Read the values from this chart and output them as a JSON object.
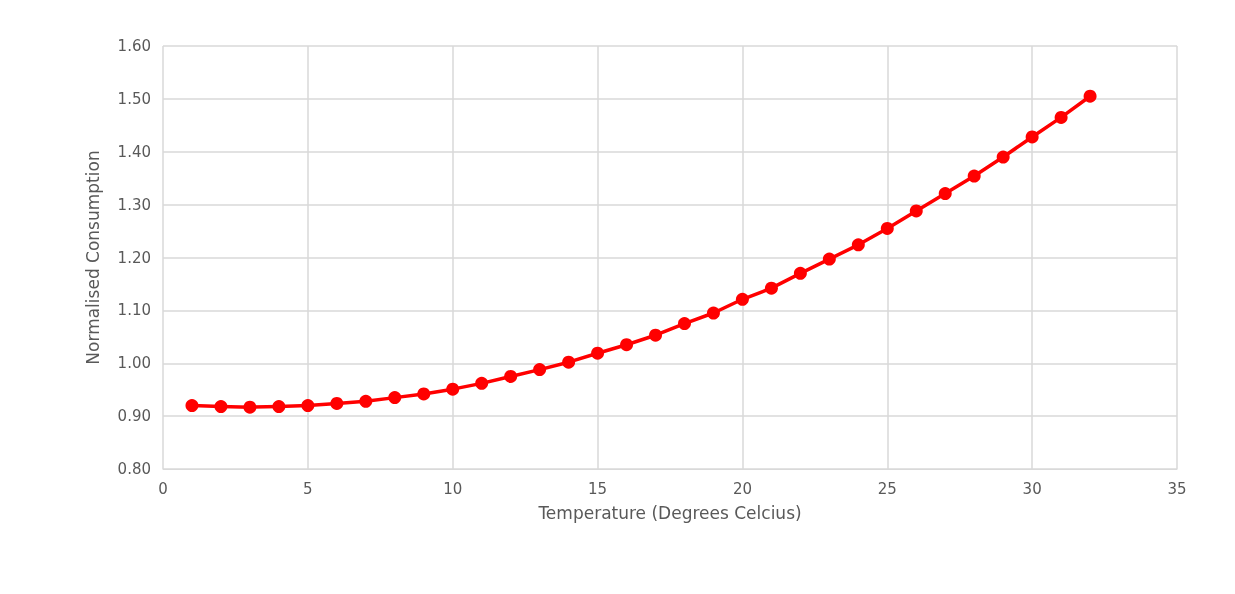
{
  "chart_data": {
    "type": "line",
    "xlabel": "Temperature (Degrees Celcius)",
    "ylabel": "Normalised Consumption",
    "x": [
      1,
      2,
      3,
      4,
      5,
      6,
      7,
      8,
      9,
      10,
      11,
      12,
      13,
      14,
      15,
      16,
      17,
      18,
      19,
      20,
      21,
      22,
      23,
      24,
      25,
      26,
      27,
      28,
      29,
      30,
      31,
      32
    ],
    "series": [
      {
        "color": "#ff0000",
        "values": [
          0.92,
          0.918,
          0.917,
          0.918,
          0.92,
          0.924,
          0.928,
          0.935,
          0.942,
          0.951,
          0.962,
          0.975,
          0.988,
          1.002,
          1.019,
          1.035,
          1.053,
          1.075,
          1.095,
          1.121,
          1.142,
          1.17,
          1.197,
          1.224,
          1.255,
          1.288,
          1.321,
          1.354,
          1.39,
          1.428,
          1.465,
          1.505
        ]
      }
    ],
    "xlim": [
      0,
      35
    ],
    "xticks": [
      0,
      5,
      10,
      15,
      20,
      25,
      30,
      35
    ],
    "ylim": [
      0.8,
      1.6
    ],
    "yticks": [
      {
        "value": 0.8,
        "label": "0.80"
      },
      {
        "value": 0.9,
        "label": "0.90"
      },
      {
        "value": 1.0,
        "label": "1.00"
      },
      {
        "value": 1.1,
        "label": "1.10"
      },
      {
        "value": 1.2,
        "label": "1.20"
      },
      {
        "value": 1.3,
        "label": "1.30"
      },
      {
        "value": 1.4,
        "label": "1.40"
      },
      {
        "value": 1.5,
        "label": "1.50"
      },
      {
        "value": 1.6,
        "label": "1.60"
      }
    ],
    "grid": true,
    "marker": "circle",
    "line_style": "solid"
  }
}
